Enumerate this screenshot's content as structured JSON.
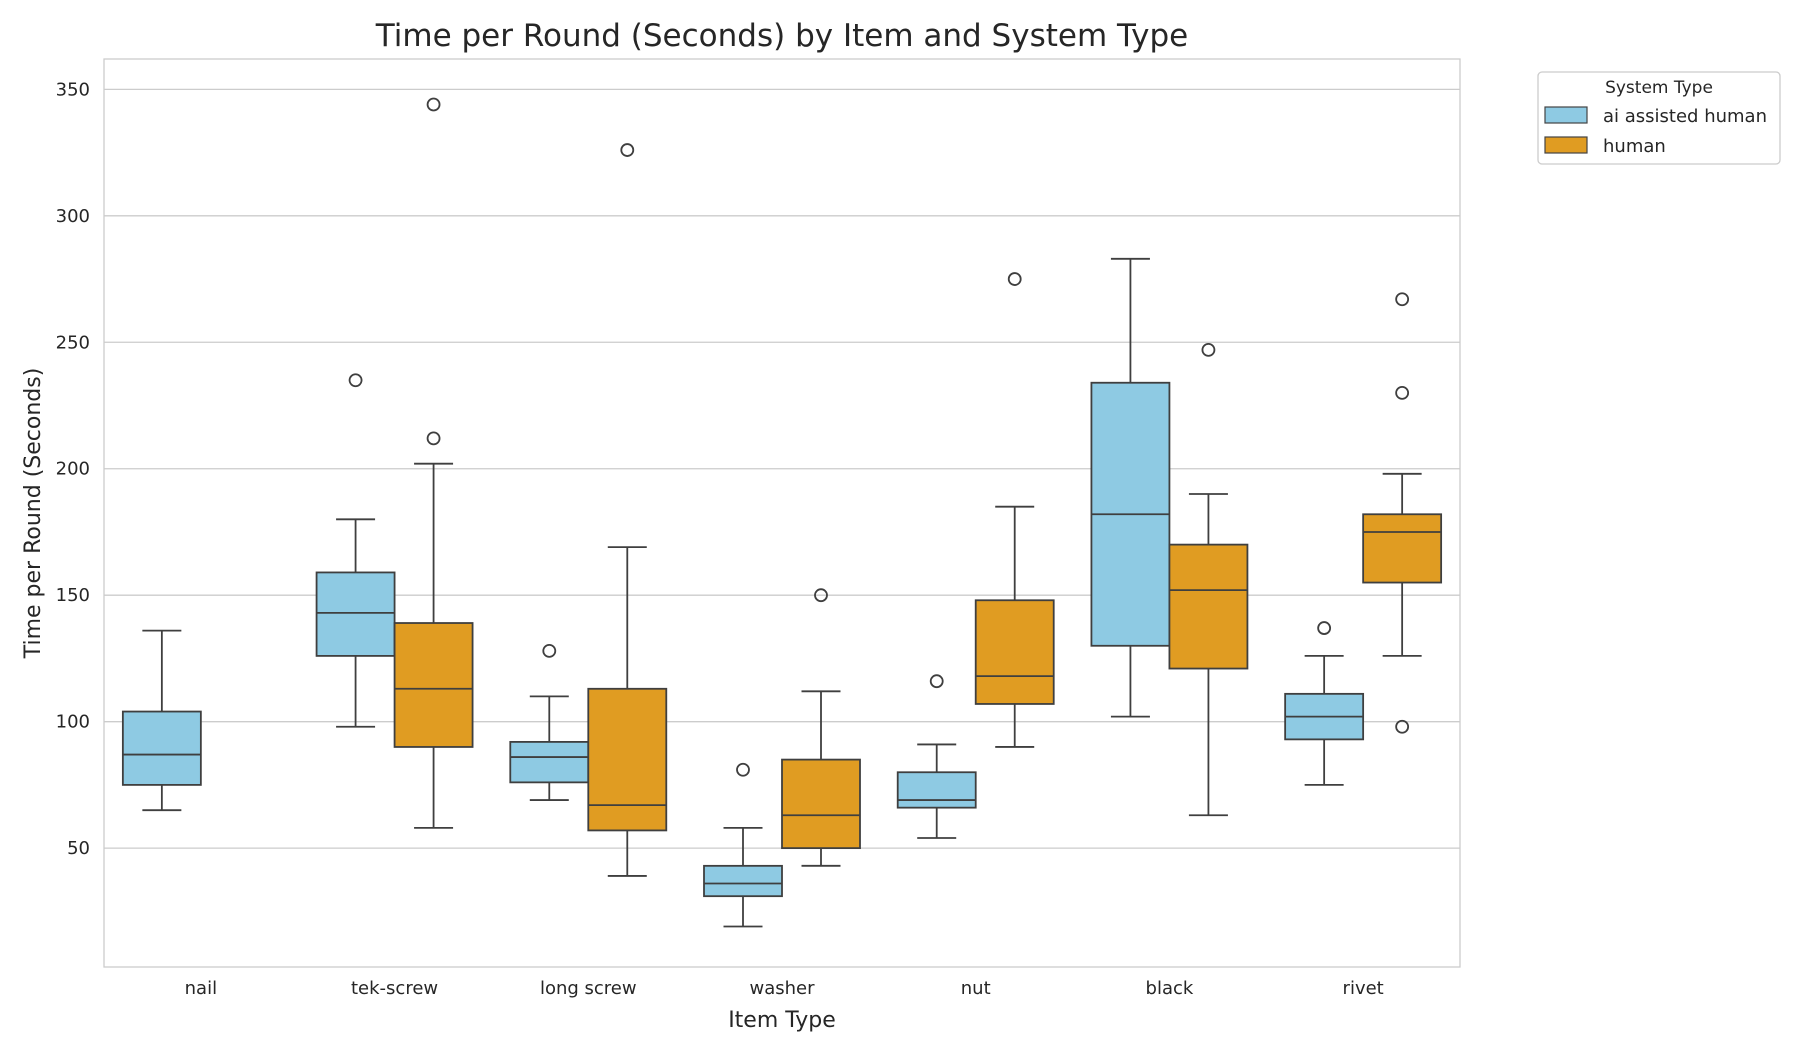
{
  "chart_data": {
    "type": "boxplot",
    "title": "Time per Round (Seconds) by Item and System Type",
    "xlabel": "Item Type",
    "ylabel": "Time per Round (Seconds)",
    "ylim": [
      3,
      362
    ],
    "yticks": [
      50,
      100,
      150,
      200,
      250,
      300,
      350
    ],
    "grid": "horizontal",
    "categories": [
      "nail",
      "tek-screw",
      "long screw",
      "washer",
      "nut",
      "black",
      "rivet"
    ],
    "legend": {
      "title": "System Type",
      "placement": "outside-top-right"
    },
    "series": [
      {
        "name": "ai assisted human",
        "color": "#8ECAE3",
        "boxes": [
          {
            "category": "nail",
            "whisker_low": 65,
            "q1": 75,
            "median": 87,
            "q3": 104,
            "whisker_high": 136,
            "outliers": []
          },
          {
            "category": "tek-screw",
            "whisker_low": 98,
            "q1": 126,
            "median": 143,
            "q3": 159,
            "whisker_high": 180,
            "outliers": [
              235
            ]
          },
          {
            "category": "long screw",
            "whisker_low": 69,
            "q1": 76,
            "median": 86,
            "q3": 92,
            "whisker_high": 110,
            "outliers": [
              128
            ]
          },
          {
            "category": "washer",
            "whisker_low": 19,
            "q1": 31,
            "median": 36,
            "q3": 43,
            "whisker_high": 58,
            "outliers": [
              81
            ]
          },
          {
            "category": "nut",
            "whisker_low": 54,
            "q1": 66,
            "median": 69,
            "q3": 80,
            "whisker_high": 91,
            "outliers": [
              116
            ]
          },
          {
            "category": "black",
            "whisker_low": 102,
            "q1": 130,
            "median": 182,
            "q3": 234,
            "whisker_high": 283,
            "outliers": []
          },
          {
            "category": "rivet",
            "whisker_low": 75,
            "q1": 93,
            "median": 102,
            "q3": 111,
            "whisker_high": 126,
            "outliers": [
              137
            ]
          }
        ]
      },
      {
        "name": "human",
        "color": "#E09C22",
        "boxes": [
          {
            "category": "nail",
            "absent": true
          },
          {
            "category": "tek-screw",
            "whisker_low": 58,
            "q1": 90,
            "median": 113,
            "q3": 139,
            "whisker_high": 202,
            "outliers": [
              212,
              344
            ]
          },
          {
            "category": "long screw",
            "whisker_low": 39,
            "q1": 57,
            "median": 67,
            "q3": 113,
            "whisker_high": 169,
            "outliers": [
              326
            ]
          },
          {
            "category": "washer",
            "whisker_low": 43,
            "q1": 50,
            "median": 63,
            "q3": 85,
            "whisker_high": 112,
            "outliers": [
              150
            ]
          },
          {
            "category": "nut",
            "whisker_low": 90,
            "q1": 107,
            "median": 118,
            "q3": 148,
            "whisker_high": 185,
            "outliers": [
              275
            ]
          },
          {
            "category": "black",
            "whisker_low": 63,
            "q1": 121,
            "median": 152,
            "q3": 170,
            "whisker_high": 190,
            "outliers": [
              247
            ]
          },
          {
            "category": "rivet",
            "whisker_low": 126,
            "q1": 155,
            "median": 175,
            "q3": 182,
            "whisker_high": 198,
            "outliers": [
              98,
              230,
              267
            ]
          }
        ]
      }
    ]
  }
}
